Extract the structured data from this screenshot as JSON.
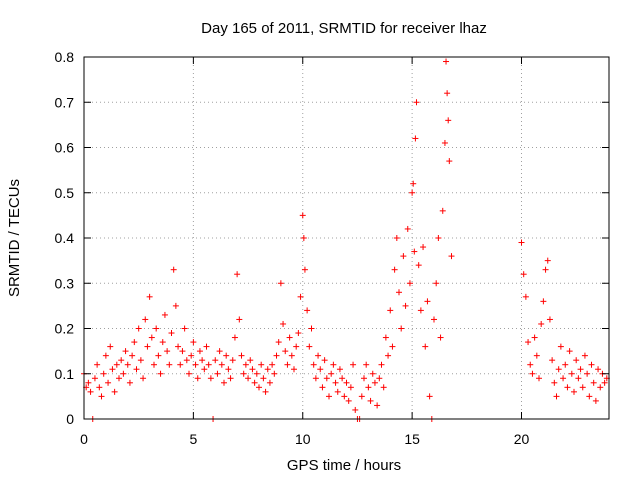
{
  "chart_data": {
    "type": "scatter",
    "title": "Day 165 of 2011, SRMTID for receiver lhaz",
    "xlabel": "GPS time / hours",
    "ylabel": "SRMTID / TECUs",
    "xlim": [
      0,
      24
    ],
    "ylim": [
      0,
      0.8
    ],
    "xticks": [
      0,
      5,
      10,
      15,
      20
    ],
    "xtick_labels": [
      "0",
      "5",
      "10",
      "15",
      "20"
    ],
    "yticks": [
      0,
      0.1,
      0.2,
      0.3,
      0.4,
      0.5,
      0.6,
      0.7,
      0.8
    ],
    "ytick_labels": [
      "0",
      "0.1",
      "0.2",
      "0.3",
      "0.4",
      "0.5",
      "0.6",
      "0.7",
      "0.8"
    ],
    "grid": true,
    "marker": "+",
    "color": "#ff0000",
    "series": [
      {
        "name": "SRMTID",
        "points": [
          [
            0.0,
            0.1
          ],
          [
            0.1,
            0.07
          ],
          [
            0.2,
            0.08
          ],
          [
            0.3,
            0.06
          ],
          [
            0.4,
            0.0
          ],
          [
            0.5,
            0.09
          ],
          [
            0.6,
            0.12
          ],
          [
            0.7,
            0.07
          ],
          [
            0.8,
            0.05
          ],
          [
            0.9,
            0.1
          ],
          [
            1.0,
            0.14
          ],
          [
            1.1,
            0.08
          ],
          [
            1.2,
            0.16
          ],
          [
            1.3,
            0.11
          ],
          [
            1.4,
            0.06
          ],
          [
            1.5,
            0.12
          ],
          [
            1.6,
            0.09
          ],
          [
            1.7,
            0.13
          ],
          [
            1.8,
            0.1
          ],
          [
            1.9,
            0.15
          ],
          [
            2.0,
            0.12
          ],
          [
            2.1,
            0.08
          ],
          [
            2.2,
            0.14
          ],
          [
            2.3,
            0.17
          ],
          [
            2.4,
            0.11
          ],
          [
            2.5,
            0.2
          ],
          [
            2.6,
            0.13
          ],
          [
            2.7,
            0.09
          ],
          [
            2.8,
            0.22
          ],
          [
            2.9,
            0.16
          ],
          [
            3.0,
            0.27
          ],
          [
            3.1,
            0.18
          ],
          [
            3.2,
            0.12
          ],
          [
            3.3,
            0.2
          ],
          [
            3.4,
            0.14
          ],
          [
            3.5,
            0.1
          ],
          [
            3.6,
            0.17
          ],
          [
            3.7,
            0.23
          ],
          [
            3.8,
            0.15
          ],
          [
            3.9,
            0.12
          ],
          [
            4.0,
            0.19
          ],
          [
            4.1,
            0.33
          ],
          [
            4.2,
            0.25
          ],
          [
            4.3,
            0.16
          ],
          [
            4.4,
            0.12
          ],
          [
            4.5,
            0.15
          ],
          [
            4.6,
            0.2
          ],
          [
            4.7,
            0.13
          ],
          [
            4.8,
            0.1
          ],
          [
            4.9,
            0.14
          ],
          [
            5.0,
            0.17
          ],
          [
            5.1,
            0.12
          ],
          [
            5.2,
            0.09
          ],
          [
            5.3,
            0.15
          ],
          [
            5.4,
            0.13
          ],
          [
            5.5,
            0.11
          ],
          [
            5.6,
            0.16
          ],
          [
            5.7,
            0.12
          ],
          [
            5.8,
            0.09
          ],
          [
            5.9,
            0.0
          ],
          [
            6.0,
            0.13
          ],
          [
            6.1,
            0.1
          ],
          [
            6.2,
            0.15
          ],
          [
            6.3,
            0.12
          ],
          [
            6.4,
            0.08
          ],
          [
            6.5,
            0.14
          ],
          [
            6.6,
            0.11
          ],
          [
            6.7,
            0.09
          ],
          [
            6.8,
            0.13
          ],
          [
            6.9,
            0.18
          ],
          [
            7.0,
            0.32
          ],
          [
            7.1,
            0.22
          ],
          [
            7.2,
            0.14
          ],
          [
            7.3,
            0.1
          ],
          [
            7.4,
            0.12
          ],
          [
            7.5,
            0.09
          ],
          [
            7.6,
            0.13
          ],
          [
            7.7,
            0.11
          ],
          [
            7.8,
            0.08
          ],
          [
            7.9,
            0.1
          ],
          [
            8.0,
            0.07
          ],
          [
            8.1,
            0.12
          ],
          [
            8.2,
            0.09
          ],
          [
            8.3,
            0.06
          ],
          [
            8.4,
            0.11
          ],
          [
            8.5,
            0.08
          ],
          [
            8.6,
            0.12
          ],
          [
            8.7,
            0.1
          ],
          [
            8.8,
            0.14
          ],
          [
            8.9,
            0.17
          ],
          [
            9.0,
            0.3
          ],
          [
            9.1,
            0.21
          ],
          [
            9.2,
            0.15
          ],
          [
            9.3,
            0.12
          ],
          [
            9.4,
            0.18
          ],
          [
            9.5,
            0.14
          ],
          [
            9.6,
            0.11
          ],
          [
            9.7,
            0.16
          ],
          [
            9.8,
            0.19
          ],
          [
            9.9,
            0.27
          ],
          [
            10.0,
            0.45
          ],
          [
            10.05,
            0.4
          ],
          [
            10.1,
            0.33
          ],
          [
            10.2,
            0.24
          ],
          [
            10.3,
            0.16
          ],
          [
            10.4,
            0.2
          ],
          [
            10.5,
            0.12
          ],
          [
            10.6,
            0.09
          ],
          [
            10.7,
            0.14
          ],
          [
            10.8,
            0.11
          ],
          [
            10.9,
            0.07
          ],
          [
            11.0,
            0.13
          ],
          [
            11.1,
            0.09
          ],
          [
            11.2,
            0.05
          ],
          [
            11.3,
            0.1
          ],
          [
            11.4,
            0.12
          ],
          [
            11.5,
            0.08
          ],
          [
            11.6,
            0.06
          ],
          [
            11.7,
            0.11
          ],
          [
            11.8,
            0.09
          ],
          [
            11.9,
            0.05
          ],
          [
            12.0,
            0.08
          ],
          [
            12.1,
            0.04
          ],
          [
            12.2,
            0.07
          ],
          [
            12.3,
            0.12
          ],
          [
            12.4,
            0.02
          ],
          [
            12.5,
            0.0
          ],
          [
            12.6,
            0.0
          ],
          [
            12.7,
            0.05
          ],
          [
            12.8,
            0.09
          ],
          [
            12.9,
            0.12
          ],
          [
            13.0,
            0.07
          ],
          [
            13.1,
            0.04
          ],
          [
            13.2,
            0.1
          ],
          [
            13.3,
            0.08
          ],
          [
            13.4,
            0.03
          ],
          [
            13.5,
            0.09
          ],
          [
            13.6,
            0.12
          ],
          [
            13.7,
            0.07
          ],
          [
            13.8,
            0.18
          ],
          [
            13.9,
            0.14
          ],
          [
            14.0,
            0.24
          ],
          [
            14.1,
            0.16
          ],
          [
            14.2,
            0.33
          ],
          [
            14.3,
            0.4
          ],
          [
            14.4,
            0.28
          ],
          [
            14.5,
            0.2
          ],
          [
            14.6,
            0.36
          ],
          [
            14.7,
            0.25
          ],
          [
            14.8,
            0.42
          ],
          [
            14.9,
            0.3
          ],
          [
            15.0,
            0.5
          ],
          [
            15.05,
            0.52
          ],
          [
            15.1,
            0.37
          ],
          [
            15.15,
            0.62
          ],
          [
            15.2,
            0.7
          ],
          [
            15.3,
            0.34
          ],
          [
            15.4,
            0.24
          ],
          [
            15.5,
            0.38
          ],
          [
            15.6,
            0.16
          ],
          [
            15.7,
            0.26
          ],
          [
            15.8,
            0.05
          ],
          [
            15.9,
            0.0
          ],
          [
            16.0,
            0.22
          ],
          [
            16.1,
            0.3
          ],
          [
            16.2,
            0.4
          ],
          [
            16.3,
            0.18
          ],
          [
            16.4,
            0.46
          ],
          [
            16.5,
            0.61
          ],
          [
            16.55,
            0.79
          ],
          [
            16.6,
            0.72
          ],
          [
            16.65,
            0.66
          ],
          [
            16.7,
            0.57
          ],
          [
            16.8,
            0.36
          ],
          [
            20.0,
            0.39
          ],
          [
            20.1,
            0.32
          ],
          [
            20.2,
            0.27
          ],
          [
            20.3,
            0.17
          ],
          [
            20.4,
            0.12
          ],
          [
            20.5,
            0.1
          ],
          [
            20.6,
            0.18
          ],
          [
            20.7,
            0.14
          ],
          [
            20.8,
            0.09
          ],
          [
            20.9,
            0.21
          ],
          [
            21.0,
            0.26
          ],
          [
            21.1,
            0.33
          ],
          [
            21.2,
            0.35
          ],
          [
            21.3,
            0.22
          ],
          [
            21.4,
            0.13
          ],
          [
            21.5,
            0.08
          ],
          [
            21.6,
            0.05
          ],
          [
            21.7,
            0.11
          ],
          [
            21.8,
            0.16
          ],
          [
            21.9,
            0.09
          ],
          [
            22.0,
            0.12
          ],
          [
            22.1,
            0.07
          ],
          [
            22.2,
            0.15
          ],
          [
            22.3,
            0.1
          ],
          [
            22.4,
            0.06
          ],
          [
            22.5,
            0.13
          ],
          [
            22.6,
            0.09
          ],
          [
            22.7,
            0.11
          ],
          [
            22.8,
            0.07
          ],
          [
            22.9,
            0.14
          ],
          [
            23.0,
            0.1
          ],
          [
            23.1,
            0.05
          ],
          [
            23.2,
            0.12
          ],
          [
            23.3,
            0.08
          ],
          [
            23.4,
            0.04
          ],
          [
            23.5,
            0.11
          ],
          [
            23.6,
            0.07
          ],
          [
            23.7,
            0.1
          ],
          [
            23.8,
            0.08
          ],
          [
            23.9,
            0.09
          ]
        ]
      }
    ]
  }
}
